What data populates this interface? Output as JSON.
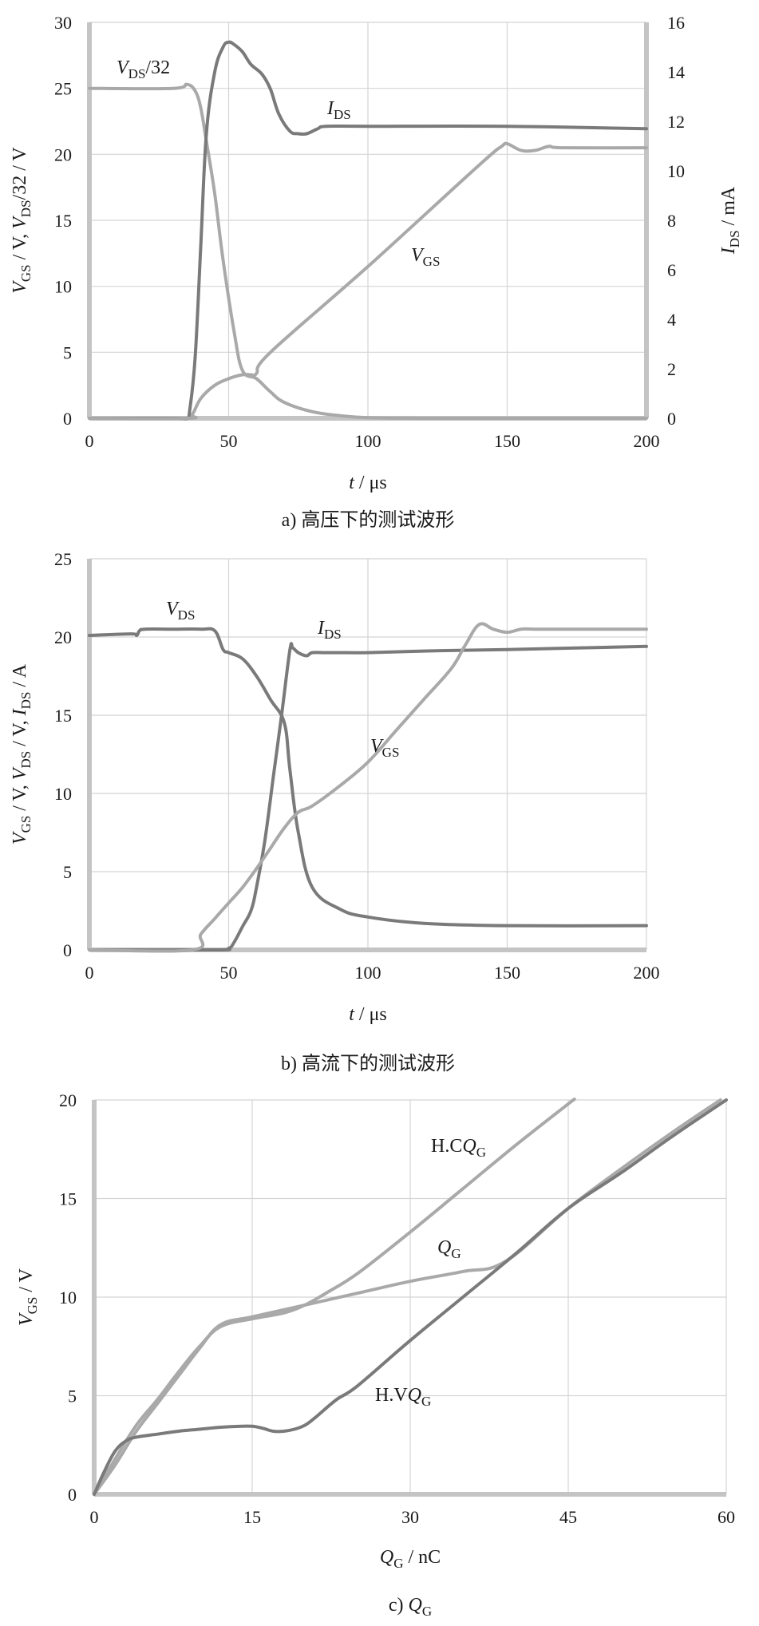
{
  "chart_data": [
    {
      "id": "a",
      "type": "line",
      "caption": "a) 高压下的测试波形",
      "xlabel": "t / μs",
      "ylabel": "V_GS / V,  V_DS/32 / V",
      "ylabel_right": "I_DS / mA",
      "xlim": [
        0,
        200
      ],
      "ylim": [
        0,
        30
      ],
      "ylim_right": [
        0,
        16
      ],
      "xticks": [
        0,
        50,
        100,
        150,
        200
      ],
      "yticks": [
        0,
        5,
        10,
        15,
        20,
        25,
        30
      ],
      "yticks_right": [
        0,
        2,
        4,
        6,
        8,
        10,
        12,
        14,
        16
      ],
      "grid": true,
      "series": [
        {
          "name": "V_DS/32",
          "axis": "left",
          "color": "#a9a9a9",
          "x": [
            0,
            30,
            35,
            38,
            40,
            42,
            45,
            48,
            52,
            55,
            60,
            65,
            70,
            80,
            90,
            100,
            120,
            150,
            200
          ],
          "y": [
            25,
            25,
            25.3,
            24.8,
            23.5,
            21,
            17,
            12,
            6.5,
            3.6,
            3.0,
            2.0,
            1.2,
            0.5,
            0.2,
            0.05,
            0,
            0,
            0
          ]
        },
        {
          "name": "I_DS",
          "axis": "right",
          "color": "#7a7a7a",
          "x": [
            0,
            30,
            35,
            36,
            38,
            40,
            42,
            45,
            48,
            50,
            52,
            55,
            58,
            62,
            65,
            68,
            72,
            75,
            78,
            82,
            85,
            100,
            150,
            200
          ],
          "y": [
            0,
            0,
            0,
            0.3,
            2.5,
            7,
            11.5,
            14,
            15,
            15.2,
            15.1,
            14.8,
            14.3,
            13.9,
            13.3,
            12.3,
            11.6,
            11.5,
            11.5,
            11.7,
            11.8,
            11.8,
            11.8,
            11.7
          ]
        },
        {
          "name": "V_GS",
          "axis": "left",
          "color": "#a9a9a9",
          "x": [
            0,
            35,
            37,
            40,
            45,
            50,
            55,
            58,
            60,
            65,
            100,
            140,
            148,
            150,
            155,
            160,
            165,
            170,
            200
          ],
          "y": [
            0,
            0,
            0.3,
            1.5,
            2.5,
            3.0,
            3.3,
            3.3,
            3.4,
            5.0,
            11.5,
            19.2,
            20.6,
            20.8,
            20.3,
            20.3,
            20.6,
            20.5,
            20.5
          ]
        }
      ],
      "annotations": {
        "vds": {
          "base": "V",
          "sub": "DS",
          "tail": "/32"
        },
        "ids": {
          "base": "I",
          "sub": "DS",
          "tail": ""
        },
        "vgs": {
          "base": "V",
          "sub": "GS",
          "tail": ""
        }
      }
    },
    {
      "id": "b",
      "type": "line",
      "caption": "b) 高流下的测试波形",
      "xlabel": "t / μs",
      "ylabel": "V_GS / V, V_DS / V, I_DS / A",
      "xlim": [
        0,
        200
      ],
      "ylim": [
        0,
        25
      ],
      "xticks": [
        0,
        50,
        100,
        150,
        200
      ],
      "yticks": [
        0,
        5,
        10,
        15,
        20,
        25
      ],
      "grid": true,
      "series": [
        {
          "name": "V_DS",
          "axis": "left",
          "color": "#7a7a7a",
          "x": [
            0,
            15,
            17,
            18,
            20,
            30,
            40,
            45,
            48,
            50,
            55,
            60,
            65,
            70,
            72,
            75,
            80,
            90,
            100,
            120,
            150,
            200
          ],
          "y": [
            20.1,
            20.2,
            20.1,
            20.4,
            20.5,
            20.5,
            20.5,
            20.4,
            19.2,
            19.0,
            18.6,
            17.5,
            16.0,
            14.5,
            11.5,
            7.5,
            4.0,
            2.6,
            2.1,
            1.7,
            1.55,
            1.55
          ]
        },
        {
          "name": "I_DS",
          "axis": "left",
          "color": "#7a7a7a",
          "x": [
            0,
            45,
            50,
            52,
            55,
            58,
            60,
            63,
            66,
            69,
            72,
            73,
            75,
            78,
            80,
            85,
            90,
            100,
            120,
            150,
            200
          ],
          "y": [
            0,
            0,
            0.1,
            0.5,
            1.5,
            2.5,
            4,
            7,
            11,
            15,
            19.2,
            19.3,
            19.0,
            18.8,
            19.0,
            19.0,
            19.0,
            19.0,
            19.1,
            19.2,
            19.4
          ]
        },
        {
          "name": "V_GS",
          "axis": "left",
          "color": "#a9a9a9",
          "x": [
            0,
            37,
            40,
            45,
            50,
            55,
            60,
            65,
            70,
            75,
            80,
            90,
            100,
            110,
            120,
            130,
            135,
            140,
            145,
            150,
            155,
            160,
            170,
            200
          ],
          "y": [
            0,
            0,
            1.0,
            2.0,
            3.0,
            4.0,
            5.2,
            6.5,
            7.8,
            8.8,
            9.2,
            10.5,
            12,
            14,
            16,
            18,
            19.5,
            20.8,
            20.5,
            20.3,
            20.5,
            20.5,
            20.5,
            20.5
          ]
        }
      ],
      "annotations": {
        "vds": {
          "base": "V",
          "sub": "DS",
          "tail": ""
        },
        "ids": {
          "base": "I",
          "sub": "DS",
          "tail": ""
        },
        "vgs": {
          "base": "V",
          "sub": "GS",
          "tail": ""
        }
      }
    },
    {
      "id": "c",
      "type": "line",
      "caption": "c) Q_G",
      "xlabel": "Q_G / nC",
      "ylabel": "V_GS / V",
      "xlim": [
        0,
        60
      ],
      "ylim": [
        0,
        20
      ],
      "xticks": [
        0,
        15,
        30,
        45,
        60
      ],
      "yticks": [
        0,
        5,
        10,
        15,
        20
      ],
      "grid": true,
      "series": [
        {
          "name": "H.C Q_G",
          "color": "#a9a9a9",
          "x": [
            0,
            2,
            4,
            6,
            8,
            10,
            12,
            15,
            18,
            20,
            22,
            25,
            30,
            35,
            40,
            45,
            48
          ],
          "y": [
            0,
            1.8,
            3.5,
            4.8,
            6.2,
            7.5,
            8.5,
            8.9,
            9.2,
            9.6,
            10.2,
            11.2,
            13.3,
            15.5,
            17.7,
            19.8,
            21.0
          ]
        },
        {
          "name": "Q_G",
          "color": "#a9a9a9",
          "x": [
            0,
            2,
            4,
            6,
            8,
            10,
            12,
            15,
            20,
            25,
            30,
            35,
            39,
            45,
            50,
            55,
            60
          ],
          "y": [
            0,
            1.5,
            3.2,
            4.6,
            6.0,
            7.4,
            8.6,
            9.0,
            9.6,
            10.2,
            10.8,
            11.3,
            11.8,
            14.5,
            16.5,
            18.4,
            20.2
          ]
        },
        {
          "name": "H.V Q_G",
          "color": "#7a7a7a",
          "x": [
            0,
            1,
            2,
            3,
            4,
            6,
            8,
            10,
            12,
            14,
            15,
            16,
            17,
            18,
            19,
            20,
            21,
            23,
            25,
            30,
            35,
            40,
            45,
            50,
            55,
            60
          ],
          "y": [
            0,
            1.2,
            2.2,
            2.7,
            2.9,
            3.05,
            3.2,
            3.3,
            3.4,
            3.45,
            3.45,
            3.35,
            3.2,
            3.2,
            3.3,
            3.5,
            3.9,
            4.8,
            5.5,
            7.8,
            10.0,
            12.2,
            14.5,
            16.3,
            18.2,
            20.0
          ]
        }
      ],
      "annotations": {
        "hc": {
          "base": "H.C",
          "sub": "G",
          "tail": ""
        },
        "qg": {
          "base": "Q",
          "sub": "G",
          "tail": ""
        },
        "hv": {
          "base": "H.V",
          "sub": "G",
          "tail": ""
        }
      }
    }
  ]
}
